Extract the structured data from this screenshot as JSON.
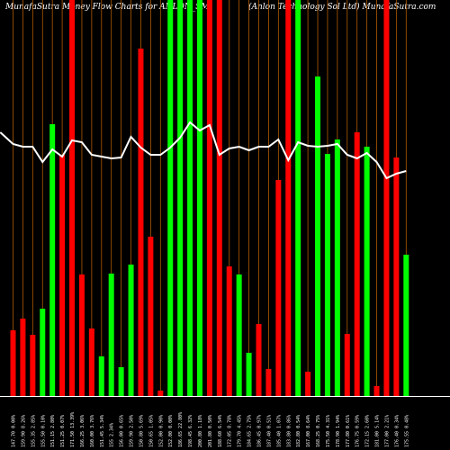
{
  "header": {
    "left": "MunafaSutra  Money Flow  Charts for ANLON_SM",
    "right": "(Anlon  Technology Sol Ltd) MunafaSutra.com"
  },
  "chart_data": {
    "type": "bar",
    "title": "MunafaSutra  Money Flow  Charts for ANLON_SM (Anlon  Technology Sol Ltd) MunafaSutra.com",
    "ylim": [
      0,
      440
    ],
    "bars": [
      {
        "value": 73,
        "color": "red"
      },
      {
        "value": 86,
        "color": "red"
      },
      {
        "value": 68,
        "color": "red"
      },
      {
        "value": 97,
        "color": "green"
      },
      {
        "value": 302,
        "color": "green"
      },
      {
        "value": 268,
        "color": "red"
      },
      {
        "value": 440,
        "color": "red"
      },
      {
        "value": 135,
        "color": "red"
      },
      {
        "value": 75,
        "color": "red"
      },
      {
        "value": 44,
        "color": "green"
      },
      {
        "value": 136,
        "color": "green"
      },
      {
        "value": 32,
        "color": "green"
      },
      {
        "value": 146,
        "color": "green"
      },
      {
        "value": 386,
        "color": "red"
      },
      {
        "value": 177,
        "color": "red"
      },
      {
        "value": 6,
        "color": "red"
      },
      {
        "value": 440,
        "color": "green"
      },
      {
        "value": 440,
        "color": "green"
      },
      {
        "value": 440,
        "color": "green"
      },
      {
        "value": 440,
        "color": "green"
      },
      {
        "value": 440,
        "color": "red"
      },
      {
        "value": 440,
        "color": "red"
      },
      {
        "value": 144,
        "color": "red"
      },
      {
        "value": 135,
        "color": "green"
      },
      {
        "value": 48,
        "color": "green"
      },
      {
        "value": 80,
        "color": "red"
      },
      {
        "value": 30,
        "color": "red"
      },
      {
        "value": 240,
        "color": "red"
      },
      {
        "value": 440,
        "color": "red"
      },
      {
        "value": 440,
        "color": "green"
      },
      {
        "value": 27,
        "color": "red"
      },
      {
        "value": 355,
        "color": "green"
      },
      {
        "value": 269,
        "color": "green"
      },
      {
        "value": 285,
        "color": "green"
      },
      {
        "value": 69,
        "color": "red"
      },
      {
        "value": 293,
        "color": "red"
      },
      {
        "value": 277,
        "color": "green"
      },
      {
        "value": 11,
        "color": "red"
      },
      {
        "value": 440,
        "color": "red"
      },
      {
        "value": 265,
        "color": "red"
      },
      {
        "value": 157,
        "color": "green"
      }
    ],
    "line": [
      {
        "i": -1.3,
        "v": 293
      },
      {
        "i": 0,
        "v": 280
      },
      {
        "i": 1,
        "v": 277
      },
      {
        "i": 2,
        "v": 277
      },
      {
        "i": 3,
        "v": 260
      },
      {
        "i": 4,
        "v": 274
      },
      {
        "i": 5,
        "v": 266
      },
      {
        "i": 6,
        "v": 284
      },
      {
        "i": 7,
        "v": 282
      },
      {
        "i": 8,
        "v": 268
      },
      {
        "i": 9,
        "v": 266
      },
      {
        "i": 10,
        "v": 264
      },
      {
        "i": 11,
        "v": 265
      },
      {
        "i": 12,
        "v": 288
      },
      {
        "i": 13,
        "v": 276
      },
      {
        "i": 14,
        "v": 268
      },
      {
        "i": 15,
        "v": 268
      },
      {
        "i": 16,
        "v": 276
      },
      {
        "i": 17,
        "v": 287
      },
      {
        "i": 18,
        "v": 304
      },
      {
        "i": 19,
        "v": 295
      },
      {
        "i": 20,
        "v": 301
      },
      {
        "i": 21,
        "v": 268
      },
      {
        "i": 22,
        "v": 275
      },
      {
        "i": 23,
        "v": 277
      },
      {
        "i": 24,
        "v": 273
      },
      {
        "i": 25,
        "v": 277
      },
      {
        "i": 26,
        "v": 277
      },
      {
        "i": 27,
        "v": 285
      },
      {
        "i": 28,
        "v": 262
      },
      {
        "i": 29,
        "v": 282
      },
      {
        "i": 30,
        "v": 278
      },
      {
        "i": 31,
        "v": 277
      },
      {
        "i": 32,
        "v": 278
      },
      {
        "i": 33,
        "v": 280
      },
      {
        "i": 34,
        "v": 268
      },
      {
        "i": 35,
        "v": 264
      },
      {
        "i": 36,
        "v": 270
      },
      {
        "i": 37,
        "v": 260
      },
      {
        "i": 38,
        "v": 242
      },
      {
        "i": 39,
        "v": 247
      },
      {
        "i": 40,
        "v": 250
      }
    ],
    "x_labels": [
      "147.70 0.00%",
      "159.90 8.26%",
      "155.35 2.85%",
      "155.50 0.10%",
      "151.15 2.80%",
      "151.25 0.07%",
      "171.50 13.39%",
      "166.25 3.06%",
      "160.00 3.76%",
      "151.45 5.34%",
      "155 2.34%",
      "156.00 0.65%",
      "159.90 2.50%",
      "150.80 5.69%",
      "150.65 1.05%",
      "152.00 0.90%",
      "152.00 0.00%",
      "186.65 22.80%",
      "198.45 6.32%",
      "200.80 1.18%",
      "201.80 0.50%",
      "188.60 6.54%",
      "172.05 8.78%",
      "179.70 4.45%",
      "184.65 2.75%",
      "186.45 0.97%",
      "187.40 0.51%",
      "185.40 1.07%",
      "183.80 0.86%",
      "182.80 0.54%",
      "167.00 8.64%",
      "168.25 0.75%",
      "175.50 4.31%",
      "178.90 1.94%",
      "177.80 0.61%",
      "176.75 0.59%",
      "172.15 2.60%",
      "181.00 5.14%",
      "177.00 2.21%",
      "176.40 0.34%",
      "175.55 0.48%"
    ]
  },
  "colors": {
    "background": "#000000",
    "green": "#00ff00",
    "red": "#ff0000",
    "line": "#ffffff",
    "grid": "#b25a00",
    "axis": "#ffffff",
    "label": "#ffffff"
  }
}
